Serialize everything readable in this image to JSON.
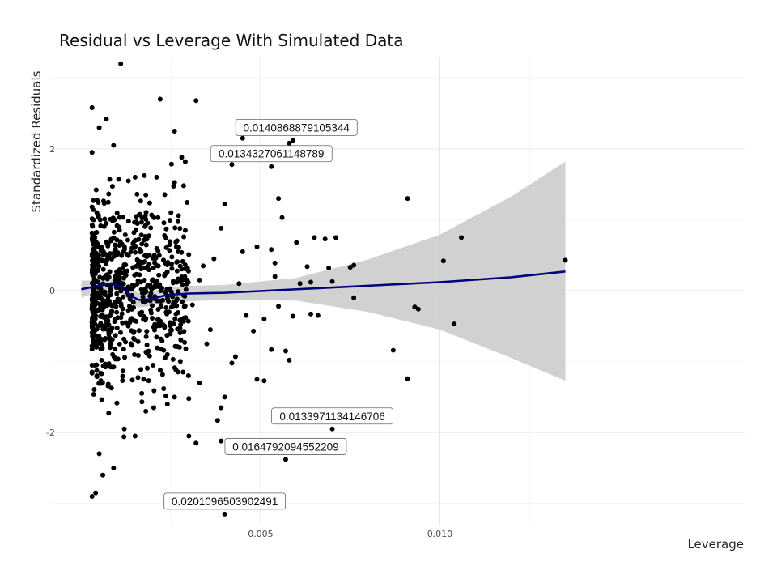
{
  "chart_data": {
    "type": "scatter",
    "title": "Residual vs Leverage With Simulated Data",
    "xlabel": "Leverage",
    "ylabel": "Standardized Residuals",
    "xlim": [
      -0.0008,
      0.0185
    ],
    "ylim": [
      -3.3,
      3.3
    ],
    "grid": true,
    "x_ticks": [
      0.005,
      0.01
    ],
    "x_tick_labels": [
      "0.005",
      "0.010"
    ],
    "y_ticks": [
      -2,
      0,
      2
    ],
    "y_tick_labels": [
      "-2",
      "0",
      "2"
    ],
    "colors": {
      "points": "#000000",
      "smooth_line": "#000080",
      "confidence_band": "#cccccc",
      "grid": "#e6e6e6"
    },
    "points": [
      {
        "x": 0.0011,
        "y": 3.2
      },
      {
        "x": 0.0022,
        "y": 2.7
      },
      {
        "x": 0.0032,
        "y": 2.68
      },
      {
        "x": 0.0003,
        "y": 2.58
      },
      {
        "x": 0.0007,
        "y": 2.42
      },
      {
        "x": 0.0005,
        "y": 2.3
      },
      {
        "x": 0.0026,
        "y": 2.25
      },
      {
        "x": 0.0045,
        "y": 2.15
      },
      {
        "x": 0.0058,
        "y": 2.08
      },
      {
        "x": 0.0059,
        "y": 2.12
      },
      {
        "x": 0.0042,
        "y": 1.78
      },
      {
        "x": 0.0053,
        "y": 1.75
      },
      {
        "x": 0.0037,
        "y": 1.9
      },
      {
        "x": 0.0028,
        "y": 1.88
      },
      {
        "x": 0.0029,
        "y": 1.82
      },
      {
        "x": 0.0003,
        "y": 1.95
      },
      {
        "x": 0.0009,
        "y": 2.05
      },
      {
        "x": 0.0015,
        "y": 1.6
      },
      {
        "x": 0.0021,
        "y": 1.6
      },
      {
        "x": 0.0055,
        "y": 1.3
      },
      {
        "x": 0.004,
        "y": 1.22
      },
      {
        "x": 0.0056,
        "y": 1.03
      },
      {
        "x": 0.0039,
        "y": 0.88
      },
      {
        "x": 0.0065,
        "y": 0.75
      },
      {
        "x": 0.0068,
        "y": 0.73
      },
      {
        "x": 0.006,
        "y": 0.68
      },
      {
        "x": 0.0071,
        "y": 0.75
      },
      {
        "x": 0.0091,
        "y": 1.3
      },
      {
        "x": 0.0106,
        "y": 0.75
      },
      {
        "x": 0.0101,
        "y": 0.42
      },
      {
        "x": 0.0076,
        "y": 0.36
      },
      {
        "x": 0.0075,
        "y": 0.33
      },
      {
        "x": 0.0069,
        "y": 0.32
      },
      {
        "x": 0.0053,
        "y": 0.58
      },
      {
        "x": 0.0049,
        "y": 0.62
      },
      {
        "x": 0.0045,
        "y": 0.55
      },
      {
        "x": 0.0054,
        "y": 0.39
      },
      {
        "x": 0.0063,
        "y": 0.34
      },
      {
        "x": 0.0064,
        "y": 0.12
      },
      {
        "x": 0.007,
        "y": 0.13
      },
      {
        "x": 0.0061,
        "y": 0.1
      },
      {
        "x": 0.0054,
        "y": 0.2
      },
      {
        "x": 0.0033,
        "y": 0.15
      },
      {
        "x": 0.0044,
        "y": 0.1
      },
      {
        "x": 0.0076,
        "y": -0.1
      },
      {
        "x": 0.0093,
        "y": -0.23
      },
      {
        "x": 0.0094,
        "y": -0.26
      },
      {
        "x": 0.0104,
        "y": -0.47
      },
      {
        "x": 0.0066,
        "y": -0.35
      },
      {
        "x": 0.0064,
        "y": -0.33
      },
      {
        "x": 0.0059,
        "y": -0.36
      },
      {
        "x": 0.0051,
        "y": -0.4
      },
      {
        "x": 0.0048,
        "y": -0.57
      },
      {
        "x": 0.0055,
        "y": -0.22
      },
      {
        "x": 0.0087,
        "y": -0.84
      },
      {
        "x": 0.0053,
        "y": -0.83
      },
      {
        "x": 0.0057,
        "y": -0.85
      },
      {
        "x": 0.0058,
        "y": -0.98
      },
      {
        "x": 0.0043,
        "y": -0.93
      },
      {
        "x": 0.0042,
        "y": -1.02
      },
      {
        "x": 0.0049,
        "y": -1.25
      },
      {
        "x": 0.0051,
        "y": -1.27
      },
      {
        "x": 0.0091,
        "y": -1.24
      },
      {
        "x": 0.0033,
        "y": -1.3
      },
      {
        "x": 0.004,
        "y": -1.5
      },
      {
        "x": 0.0039,
        "y": -1.65
      },
      {
        "x": 0.007,
        "y": -1.95
      },
      {
        "x": 0.0038,
        "y": -1.83
      },
      {
        "x": 0.003,
        "y": -2.05
      },
      {
        "x": 0.0032,
        "y": -2.15
      },
      {
        "x": 0.0039,
        "y": -2.12
      },
      {
        "x": 0.0057,
        "y": -2.38
      },
      {
        "x": 0.004,
        "y": -3.15
      },
      {
        "x": 0.0015,
        "y": -2.05
      },
      {
        "x": 0.0012,
        "y": -1.95
      },
      {
        "x": 0.0005,
        "y": -2.3
      },
      {
        "x": 0.0006,
        "y": -2.6
      },
      {
        "x": 0.0009,
        "y": -2.5
      },
      {
        "x": 0.0004,
        "y": -2.85
      },
      {
        "x": 0.0003,
        "y": -2.9
      },
      {
        "x": 0.0018,
        "y": -1.7
      },
      {
        "x": 0.0024,
        "y": -1.6
      },
      {
        "x": 0.0026,
        "y": -1.5
      },
      {
        "x": 0.0135,
        "y": 0.43
      },
      {
        "x": 0.0046,
        "y": -0.35
      },
      {
        "x": 0.0036,
        "y": -0.55
      },
      {
        "x": 0.0034,
        "y": 0.35
      },
      {
        "x": 0.0037,
        "y": 0.45
      },
      {
        "x": 0.0031,
        "y": -0.2
      },
      {
        "x": 0.0027,
        "y": 0.55
      },
      {
        "x": 0.0024,
        "y": -0.9
      },
      {
        "x": 0.0025,
        "y": 1.1
      },
      {
        "x": 0.002,
        "y": -1.05
      },
      {
        "x": 0.0018,
        "y": 1.35
      },
      {
        "x": 0.0035,
        "y": -0.75
      },
      {
        "x": 0.0029,
        "y": 0.85
      }
    ],
    "smooth_line": [
      {
        "x": 0.0,
        "y": 0.02
      },
      {
        "x": 0.0005,
        "y": 0.07
      },
      {
        "x": 0.0008,
        "y": 0.1
      },
      {
        "x": 0.0011,
        "y": 0.06
      },
      {
        "x": 0.0014,
        "y": -0.08
      },
      {
        "x": 0.0016,
        "y": -0.13
      },
      {
        "x": 0.0019,
        "y": -0.12
      },
      {
        "x": 0.0024,
        "y": -0.06
      },
      {
        "x": 0.003,
        "y": -0.04
      },
      {
        "x": 0.004,
        "y": -0.03
      },
      {
        "x": 0.006,
        "y": 0.02
      },
      {
        "x": 0.008,
        "y": 0.07
      },
      {
        "x": 0.01,
        "y": 0.12
      },
      {
        "x": 0.012,
        "y": 0.19
      },
      {
        "x": 0.0135,
        "y": 0.27
      }
    ],
    "confidence_band": [
      {
        "x": 0.0,
        "lo": -0.1,
        "hi": 0.14
      },
      {
        "x": 0.0005,
        "lo": -0.01,
        "hi": 0.15
      },
      {
        "x": 0.0008,
        "lo": 0.03,
        "hi": 0.17
      },
      {
        "x": 0.0011,
        "lo": -0.02,
        "hi": 0.14
      },
      {
        "x": 0.0014,
        "lo": -0.18,
        "hi": 0.02
      },
      {
        "x": 0.0016,
        "lo": -0.24,
        "hi": -0.03
      },
      {
        "x": 0.0019,
        "lo": -0.22,
        "hi": -0.02
      },
      {
        "x": 0.0024,
        "lo": -0.17,
        "hi": 0.05
      },
      {
        "x": 0.003,
        "lo": -0.15,
        "hi": 0.07
      },
      {
        "x": 0.004,
        "lo": -0.13,
        "hi": 0.08
      },
      {
        "x": 0.006,
        "lo": -0.14,
        "hi": 0.18
      },
      {
        "x": 0.008,
        "lo": -0.3,
        "hi": 0.44
      },
      {
        "x": 0.01,
        "lo": -0.55,
        "hi": 0.79
      },
      {
        "x": 0.012,
        "lo": -0.95,
        "hi": 1.33
      },
      {
        "x": 0.0135,
        "lo": -1.27,
        "hi": 1.82
      }
    ],
    "annotations": [
      {
        "text": "0.0140868879105344",
        "x": 0.006,
        "y": 2.12
      },
      {
        "text": "0.0134327061148789",
        "x": 0.0053,
        "y": 1.75
      },
      {
        "text": "0.0133971134146706",
        "x": 0.007,
        "y": -1.95
      },
      {
        "text": "0.0164792094552209",
        "x": 0.0057,
        "y": -2.38
      },
      {
        "text": "0.0201096503902491",
        "x": 0.004,
        "y": -3.15
      }
    ],
    "dense_cluster": {
      "note_free": true,
      "x_range": [
        0.0003,
        0.003
      ],
      "count": 750
    }
  }
}
